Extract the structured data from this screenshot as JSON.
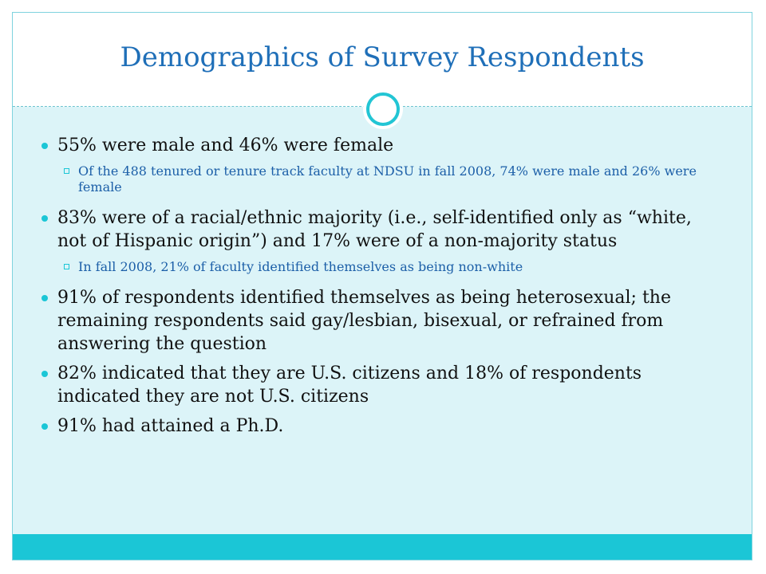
{
  "slide": {
    "title": "Demographics of Survey Respondents",
    "bullets": [
      {
        "text": "55% were male and 46% were female",
        "sub": [
          "Of the 488 tenured or tenure track faculty at NDSU in fall 2008, 74% were male and 26% were female"
        ]
      },
      {
        "text": "83% were of a racial/ethnic majority (i.e., self-identified only as “white, not of Hispanic origin”) and 17% were of a non-majority status",
        "sub": [
          "In fall 2008, 21% of faculty identified themselves as being non-white"
        ]
      },
      {
        "text": "91% of respondents identified themselves as being heterosexual; the remaining respondents said gay/lesbian, bisexual, or refrained from answering the question",
        "sub": []
      },
      {
        "text": "82% indicated that they are U.S. citizens and 18% of respondents indicated they are not U.S. citizens",
        "sub": []
      },
      {
        "text": "91% had attained a Ph.D.",
        "sub": []
      }
    ]
  },
  "colors": {
    "title": "#1f6fb8",
    "accent": "#1bc6d6",
    "content_background": "#dcf4f8",
    "sub_bullet_text": "#1c5fa8"
  },
  "icons": {
    "bullet_level1": "filled-circle-bullet",
    "bullet_level2": "hollow-square-bullet",
    "decoration": "ring-icon"
  }
}
